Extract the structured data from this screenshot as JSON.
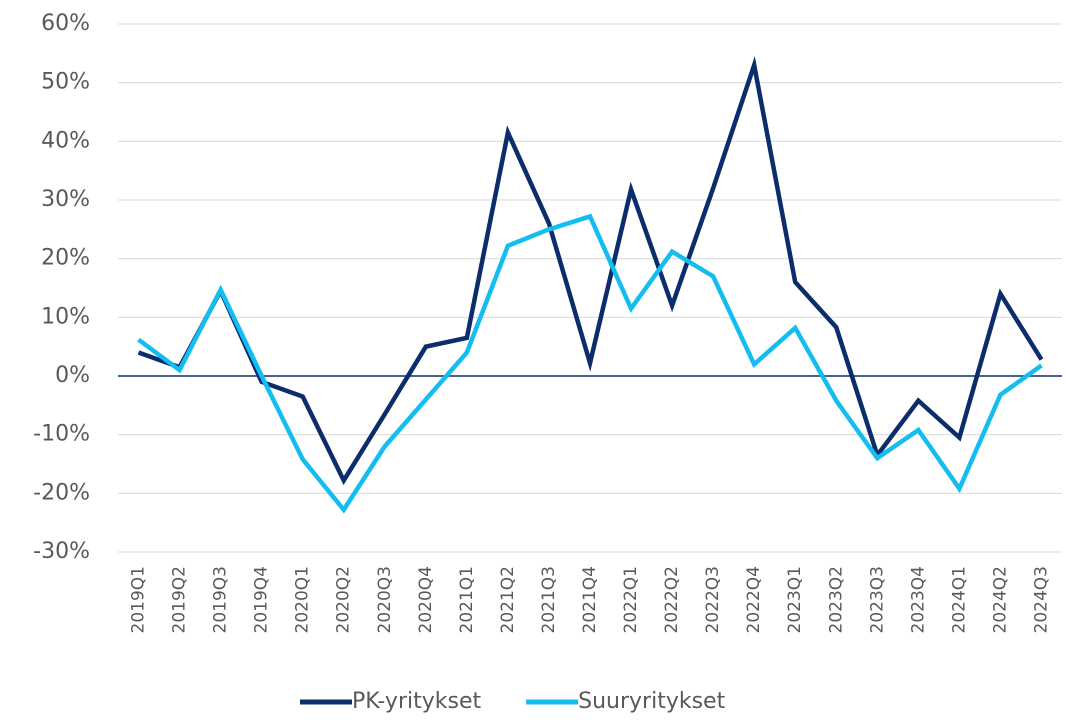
{
  "chart_data": {
    "type": "line",
    "categories": [
      "2019Q1",
      "2019Q2",
      "2019Q3",
      "2019Q4",
      "2020Q1",
      "2020Q2",
      "2020Q3",
      "2020Q4",
      "2021Q1",
      "2021Q2",
      "2021Q3",
      "2021Q4",
      "2022Q1",
      "2022Q2",
      "2022Q3",
      "2022Q4",
      "2023Q1",
      "2023Q2",
      "2023Q3",
      "2023Q4",
      "2024Q1",
      "2024Q2",
      "2024Q3"
    ],
    "series": [
      {
        "name": "PK-yritykset",
        "color": "#0b2d6b",
        "values": [
          4,
          1.5,
          14.5,
          -1,
          -3.5,
          -17.8,
          -6.5,
          5,
          6.5,
          41.5,
          26,
          2.2,
          31.8,
          12,
          32,
          53,
          16,
          8.3,
          -13.5,
          -4.2,
          -10.5,
          14,
          2.8
        ]
      },
      {
        "name": "Suuryritykset",
        "color": "#14bdf0",
        "values": [
          6.2,
          1,
          14.7,
          0,
          -14.2,
          -22.8,
          -12,
          -4,
          4,
          22.2,
          25,
          27.2,
          11.5,
          21.2,
          17,
          2,
          8.2,
          -4.2,
          -14,
          -9.2,
          -19.2,
          -3.2,
          1.8
        ]
      }
    ],
    "ylim": [
      -30,
      60
    ],
    "yticks": [
      {
        "value": -30,
        "label": "-30%"
      },
      {
        "value": -20,
        "label": "-20%"
      },
      {
        "value": -10,
        "label": "-10%"
      },
      {
        "value": 0,
        "label": "0%"
      },
      {
        "value": 10,
        "label": "10%"
      },
      {
        "value": 20,
        "label": "20%"
      },
      {
        "value": 30,
        "label": "30%"
      },
      {
        "value": 40,
        "label": "40%"
      },
      {
        "value": 50,
        "label": "50%"
      },
      {
        "value": 60,
        "label": "60%"
      }
    ],
    "grid": true,
    "legend": "bottom"
  }
}
